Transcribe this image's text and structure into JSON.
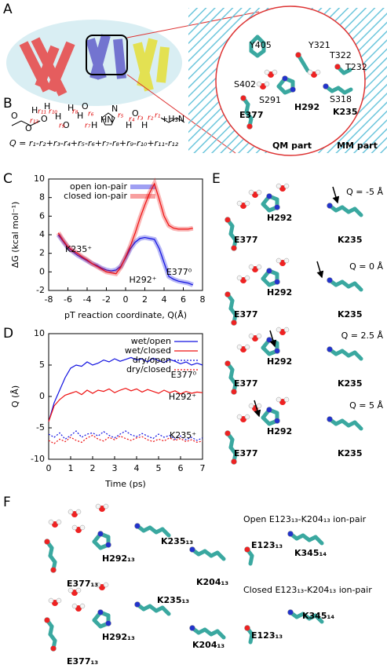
{
  "panels": {
    "labels": [
      "A",
      "B",
      "C",
      "D",
      "E",
      "F"
    ],
    "A": {
      "residues": [
        "Y405",
        "Y321",
        "T322",
        "T232",
        "S402",
        "S291",
        "H292",
        "S318",
        "E377",
        "K235"
      ],
      "regions": [
        "QM part",
        "MM part"
      ]
    },
    "B": {
      "equation": "Q = r₁-r₂+r₃-r₄+r₅-r₆+r₇-r₈+r₉-r₁₀+r₁₁-r₁₂",
      "atoms": [
        "O",
        "O",
        "H",
        "O",
        "H",
        "H",
        "O",
        "H",
        "H",
        "O",
        "H",
        "HN",
        "N",
        "H",
        "O",
        "H",
        "+H₃N"
      ],
      "distances": [
        "r₁₂",
        "r₁₁",
        "r₁₀",
        "r₉",
        "r₈",
        "r₇",
        "r₆",
        "r₅",
        "r₄",
        "r₃",
        "r₂",
        "r₁"
      ]
    },
    "E": {
      "rows": [
        {
          "q": "Q = -5 Å",
          "residues": [
            "H292",
            "E377",
            "K235"
          ]
        },
        {
          "q": "Q = 0 Å",
          "residues": [
            "H292",
            "E377",
            "K235"
          ]
        },
        {
          "q": "Q = 2.5 Å",
          "residues": [
            "H292",
            "E377",
            "K235"
          ]
        },
        {
          "q": "Q =  5 Å",
          "residues": [
            "H292",
            "E377",
            "K235"
          ]
        }
      ]
    },
    "F": {
      "open": {
        "title": "Open E123₁₃-K204₁₃ ion-pair",
        "residues": [
          "H292₁₃",
          "K235₁₃",
          "E377₁₃",
          "K204₁₃",
          "E123₁₃",
          "K345₁₄"
        ]
      },
      "closed": {
        "title": "Closed E123₁₃-K204₁₃ ion-pair",
        "residues": [
          "K235₁₃",
          "H292₁₃",
          "E377₁₃",
          "K204₁₃",
          "E123₁₃",
          "K345₁₄"
        ]
      }
    }
  },
  "chart_data": [
    {
      "type": "line",
      "x_label": "pT reaction coordinate, Q(Å)",
      "y_label": "ΔG (kcal mol⁻¹)",
      "xlim": [
        -8,
        8
      ],
      "xticks": [
        -8,
        -6,
        -4,
        -2,
        0,
        2,
        4,
        6,
        8
      ],
      "ylim": [
        -2,
        10
      ],
      "yticks": [
        -2,
        0,
        2,
        4,
        6,
        8,
        10
      ],
      "legend": "upper left",
      "shaded": true,
      "annotations": [
        "K235⁺",
        "H292⁺",
        "E377⁰"
      ],
      "x": [
        -7,
        -6.5,
        -6,
        -5.5,
        -5,
        -4.5,
        -4,
        -3.5,
        -3,
        -2.5,
        -2,
        -1.5,
        -1,
        -0.5,
        0,
        0.5,
        1,
        1.5,
        2,
        2.5,
        3,
        3.5,
        4,
        4.5,
        5,
        5.5,
        6,
        6.5,
        7
      ],
      "series": [
        {
          "name": "open ion-pair",
          "color": "#1010e0",
          "dash": "solid",
          "values": [
            4,
            3.3,
            2.6,
            2.2,
            1.8,
            1.5,
            1.2,
            0.9,
            0.7,
            0.4,
            0.2,
            0.1,
            0.2,
            0.6,
            1.5,
            2.5,
            3.2,
            3.6,
            3.7,
            3.6,
            3.5,
            2.5,
            1,
            -0.5,
            -0.8,
            -1,
            -1.1,
            -1.2,
            -1.4
          ]
        },
        {
          "name": "closed ion-pair",
          "color": "#ee1010",
          "dash": "solid",
          "values": [
            4.2,
            3.4,
            2.7,
            2.3,
            2,
            1.6,
            1.3,
            0.9,
            0.6,
            0.3,
            0,
            -0.1,
            -0.2,
            0.5,
            1.6,
            2.8,
            4.2,
            5.8,
            7.2,
            8.5,
            9.5,
            7.8,
            6,
            5,
            4.7,
            4.6,
            4.6,
            4.6,
            4.7
          ]
        }
      ]
    },
    {
      "type": "line",
      "x_label": "Time (ps)",
      "y_label": "Q (Å)",
      "xlim": [
        0,
        7
      ],
      "xticks": [
        0,
        1,
        2,
        3,
        4,
        5,
        6,
        7
      ],
      "ylim": [
        -10,
        10
      ],
      "yticks": [
        -10,
        -5,
        0,
        5,
        10
      ],
      "legend": "upper right",
      "shaded": false,
      "annotations": [
        "E377⁰",
        "H292⁺",
        "K235⁺"
      ],
      "x": [
        0,
        0.25,
        0.5,
        0.75,
        1,
        1.25,
        1.5,
        1.75,
        2,
        2.25,
        2.5,
        2.75,
        3,
        3.25,
        3.5,
        3.75,
        4,
        4.25,
        4.5,
        4.75,
        5,
        5.25,
        5.5,
        5.75,
        6,
        6.25,
        6.5,
        6.75,
        7
      ],
      "series": [
        {
          "name": "wet/open",
          "color": "#1010e0",
          "dash": "solid",
          "values": [
            -4,
            -1,
            1,
            3,
            4.5,
            5,
            4.8,
            5.5,
            5,
            5.3,
            5.8,
            5.5,
            6,
            5.6,
            5.9,
            6.2,
            5.8,
            6,
            5.5,
            6.1,
            5.7,
            5.4,
            5.9,
            5.6,
            5.2,
            5.5,
            5,
            5.3,
            5
          ]
        },
        {
          "name": "wet/closed",
          "color": "#ee1010",
          "dash": "solid",
          "values": [
            -4,
            -1.5,
            -0.5,
            0.2,
            0.5,
            0.8,
            0.3,
            1,
            0.5,
            1,
            0.8,
            1.2,
            0.6,
            1,
            1.3,
            0.9,
            1.2,
            0.7,
            1.1,
            0.8,
            0.5,
            1,
            0.6,
            0.9,
            0.4,
            0.8,
            0.5,
            0.7,
            0.6
          ]
        },
        {
          "name": "dry/open",
          "color": "#1010e0",
          "dash": "dotted",
          "values": [
            -6,
            -6.5,
            -5.8,
            -6.8,
            -6.2,
            -5.5,
            -6.5,
            -6,
            -5.8,
            -6.3,
            -5.6,
            -6.2,
            -6.6,
            -6,
            -5.5,
            -6.1,
            -6.4,
            -5.9,
            -6.3,
            -6.7,
            -6,
            -6.5,
            -6.2,
            -6.8,
            -6.3,
            -6.9,
            -6.5,
            -7,
            -6.6
          ]
        },
        {
          "name": "dry/closed",
          "color": "#ee1010",
          "dash": "dotted",
          "values": [
            -7,
            -7.5,
            -6.8,
            -7.2,
            -6.5,
            -7,
            -7.3,
            -6.6,
            -6.2,
            -6.8,
            -7.1,
            -6.5,
            -6.9,
            -6.3,
            -6.7,
            -7,
            -6.6,
            -6.4,
            -6.9,
            -7.2,
            -6.8,
            -7.1,
            -6.6,
            -7,
            -6.7,
            -7.2,
            -6.9,
            -7.3,
            -7.1
          ]
        }
      ]
    }
  ]
}
